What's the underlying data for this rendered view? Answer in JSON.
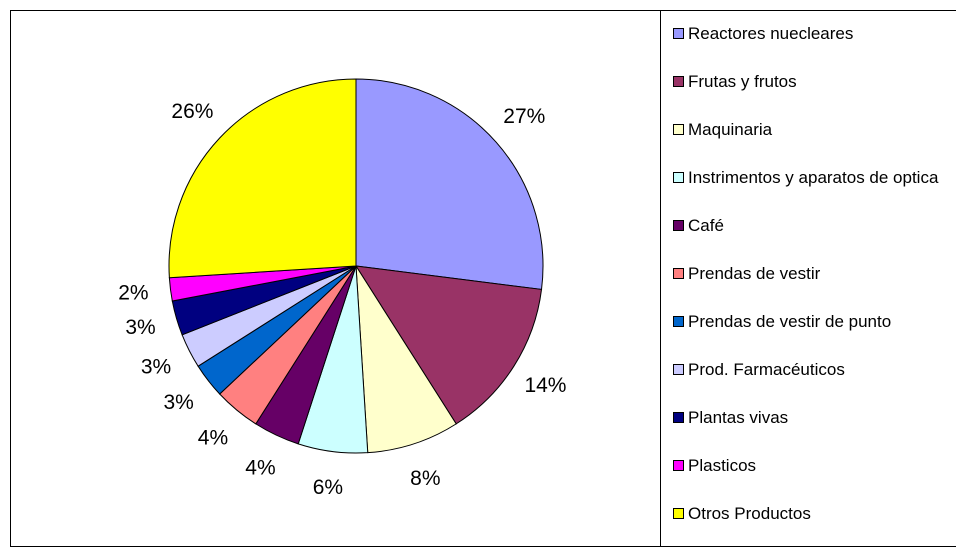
{
  "chart_data": {
    "type": "pie",
    "categories": [
      "Reactores nuecleares",
      "Frutas y frutos",
      "Maquinaria",
      "Instrimentos y aparatos de optica",
      "Café",
      "Prendas de vestir",
      "Prendas de vestir de punto",
      "Prod. Farmacéuticos",
      "Plantas vivas",
      "Plasticos",
      "Otros Productos"
    ],
    "values": [
      27,
      14,
      8,
      6,
      4,
      4,
      3,
      3,
      3,
      2,
      26
    ],
    "value_labels": [
      "27%",
      "14%",
      "8%",
      "6%",
      "4%",
      "4%",
      "3%",
      "3%",
      "3%",
      "2%",
      "26%"
    ],
    "colors": [
      "#9999ff",
      "#993366",
      "#ffffcc",
      "#ccffff",
      "#660066",
      "#ff8080",
      "#0066cc",
      "#ccccff",
      "#000080",
      "#ff00ff",
      "#ffff00"
    ],
    "legend": "right"
  }
}
